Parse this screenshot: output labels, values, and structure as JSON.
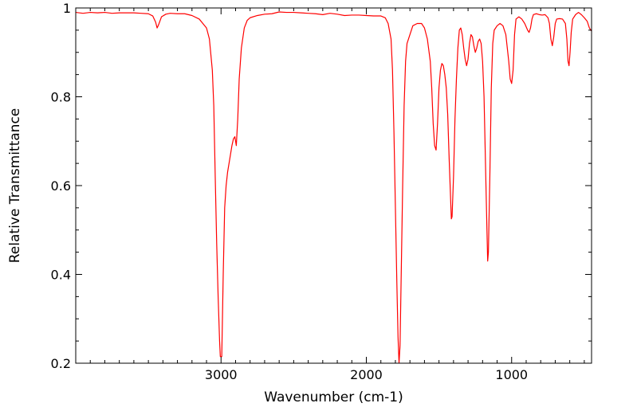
{
  "chart_data": {
    "type": "line",
    "title": "",
    "xlabel": "Wavenumber (cm-1)",
    "ylabel": "Relative Transmittance",
    "xlim": [
      4000,
      450
    ],
    "ylim": [
      0.2,
      1.0
    ],
    "x_reversed": true,
    "x_ticks": [
      3000,
      2000,
      1000
    ],
    "x_tick_labels": [
      "3000",
      "2000",
      "1000"
    ],
    "y_ticks": [
      0.2,
      0.4,
      0.6,
      0.8,
      1.0
    ],
    "y_tick_labels": [
      "0.2",
      "0.4",
      "0.6",
      "0.8",
      "1"
    ],
    "grid": false,
    "line_color": "#ff0000",
    "series": [
      {
        "points": [
          [
            4000,
            0.99
          ],
          [
            3950,
            0.988
          ],
          [
            3900,
            0.99
          ],
          [
            3850,
            0.989
          ],
          [
            3800,
            0.99
          ],
          [
            3750,
            0.988
          ],
          [
            3700,
            0.989
          ],
          [
            3650,
            0.989
          ],
          [
            3600,
            0.989
          ],
          [
            3550,
            0.988
          ],
          [
            3500,
            0.987
          ],
          [
            3470,
            0.982
          ],
          [
            3450,
            0.968
          ],
          [
            3440,
            0.955
          ],
          [
            3430,
            0.962
          ],
          [
            3410,
            0.98
          ],
          [
            3380,
            0.986
          ],
          [
            3350,
            0.988
          ],
          [
            3300,
            0.987
          ],
          [
            3250,
            0.987
          ],
          [
            3200,
            0.983
          ],
          [
            3150,
            0.975
          ],
          [
            3100,
            0.955
          ],
          [
            3080,
            0.93
          ],
          [
            3060,
            0.86
          ],
          [
            3050,
            0.78
          ],
          [
            3040,
            0.62
          ],
          [
            3030,
            0.47
          ],
          [
            3020,
            0.35
          ],
          [
            3010,
            0.25
          ],
          [
            3005,
            0.215
          ],
          [
            2995,
            0.215
          ],
          [
            2985,
            0.4
          ],
          [
            2975,
            0.55
          ],
          [
            2965,
            0.6
          ],
          [
            2955,
            0.63
          ],
          [
            2945,
            0.65
          ],
          [
            2935,
            0.67
          ],
          [
            2925,
            0.69
          ],
          [
            2915,
            0.705
          ],
          [
            2905,
            0.71
          ],
          [
            2895,
            0.69
          ],
          [
            2885,
            0.75
          ],
          [
            2875,
            0.84
          ],
          [
            2860,
            0.91
          ],
          [
            2840,
            0.955
          ],
          [
            2820,
            0.972
          ],
          [
            2800,
            0.978
          ],
          [
            2750,
            0.983
          ],
          [
            2700,
            0.986
          ],
          [
            2650,
            0.987
          ],
          [
            2600,
            0.991
          ],
          [
            2550,
            0.99
          ],
          [
            2500,
            0.99
          ],
          [
            2450,
            0.989
          ],
          [
            2400,
            0.988
          ],
          [
            2350,
            0.987
          ],
          [
            2300,
            0.985
          ],
          [
            2250,
            0.988
          ],
          [
            2200,
            0.986
          ],
          [
            2150,
            0.983
          ],
          [
            2100,
            0.984
          ],
          [
            2050,
            0.984
          ],
          [
            2000,
            0.983
          ],
          [
            1950,
            0.982
          ],
          [
            1900,
            0.982
          ],
          [
            1870,
            0.978
          ],
          [
            1850,
            0.965
          ],
          [
            1830,
            0.93
          ],
          [
            1820,
            0.86
          ],
          [
            1810,
            0.72
          ],
          [
            1800,
            0.55
          ],
          [
            1790,
            0.38
          ],
          [
            1782,
            0.26
          ],
          [
            1775,
            0.2
          ],
          [
            1768,
            0.24
          ],
          [
            1760,
            0.4
          ],
          [
            1750,
            0.6
          ],
          [
            1740,
            0.78
          ],
          [
            1730,
            0.88
          ],
          [
            1720,
            0.92
          ],
          [
            1700,
            0.94
          ],
          [
            1680,
            0.96
          ],
          [
            1650,
            0.965
          ],
          [
            1620,
            0.965
          ],
          [
            1600,
            0.955
          ],
          [
            1580,
            0.93
          ],
          [
            1560,
            0.88
          ],
          [
            1550,
            0.82
          ],
          [
            1540,
            0.74
          ],
          [
            1530,
            0.69
          ],
          [
            1520,
            0.68
          ],
          [
            1510,
            0.74
          ],
          [
            1500,
            0.82
          ],
          [
            1490,
            0.86
          ],
          [
            1480,
            0.875
          ],
          [
            1470,
            0.87
          ],
          [
            1460,
            0.85
          ],
          [
            1450,
            0.82
          ],
          [
            1440,
            0.76
          ],
          [
            1430,
            0.66
          ],
          [
            1420,
            0.57
          ],
          [
            1415,
            0.525
          ],
          [
            1410,
            0.53
          ],
          [
            1400,
            0.62
          ],
          [
            1390,
            0.75
          ],
          [
            1380,
            0.84
          ],
          [
            1370,
            0.91
          ],
          [
            1360,
            0.95
          ],
          [
            1350,
            0.955
          ],
          [
            1340,
            0.94
          ],
          [
            1330,
            0.91
          ],
          [
            1320,
            0.885
          ],
          [
            1310,
            0.87
          ],
          [
            1300,
            0.885
          ],
          [
            1290,
            0.92
          ],
          [
            1280,
            0.94
          ],
          [
            1270,
            0.935
          ],
          [
            1260,
            0.915
          ],
          [
            1250,
            0.9
          ],
          [
            1240,
            0.91
          ],
          [
            1230,
            0.925
          ],
          [
            1220,
            0.93
          ],
          [
            1210,
            0.92
          ],
          [
            1200,
            0.88
          ],
          [
            1190,
            0.8
          ],
          [
            1180,
            0.65
          ],
          [
            1170,
            0.5
          ],
          [
            1165,
            0.43
          ],
          [
            1160,
            0.45
          ],
          [
            1150,
            0.62
          ],
          [
            1140,
            0.82
          ],
          [
            1130,
            0.92
          ],
          [
            1120,
            0.95
          ],
          [
            1100,
            0.96
          ],
          [
            1080,
            0.965
          ],
          [
            1060,
            0.96
          ],
          [
            1040,
            0.94
          ],
          [
            1020,
            0.88
          ],
          [
            1010,
            0.84
          ],
          [
            1000,
            0.83
          ],
          [
            990,
            0.86
          ],
          [
            980,
            0.94
          ],
          [
            970,
            0.975
          ],
          [
            950,
            0.98
          ],
          [
            930,
            0.975
          ],
          [
            910,
            0.965
          ],
          [
            890,
            0.95
          ],
          [
            880,
            0.945
          ],
          [
            870,
            0.955
          ],
          [
            860,
            0.975
          ],
          [
            850,
            0.985
          ],
          [
            830,
            0.987
          ],
          [
            810,
            0.985
          ],
          [
            790,
            0.984
          ],
          [
            770,
            0.985
          ],
          [
            750,
            0.978
          ],
          [
            740,
            0.965
          ],
          [
            730,
            0.93
          ],
          [
            720,
            0.915
          ],
          [
            710,
            0.935
          ],
          [
            700,
            0.965
          ],
          [
            690,
            0.975
          ],
          [
            670,
            0.976
          ],
          [
            650,
            0.975
          ],
          [
            630,
            0.965
          ],
          [
            620,
            0.93
          ],
          [
            612,
            0.88
          ],
          [
            605,
            0.87
          ],
          [
            598,
            0.9
          ],
          [
            590,
            0.945
          ],
          [
            580,
            0.975
          ],
          [
            560,
            0.985
          ],
          [
            540,
            0.99
          ],
          [
            520,
            0.985
          ],
          [
            500,
            0.978
          ],
          [
            480,
            0.97
          ],
          [
            465,
            0.955
          ],
          [
            455,
            0.95
          ],
          [
            450,
            0.948
          ]
        ]
      }
    ]
  }
}
